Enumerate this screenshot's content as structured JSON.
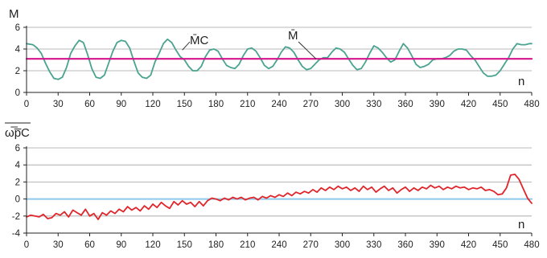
{
  "chart_data": [
    {
      "type": "line",
      "id": "top",
      "title": "",
      "ylabel": "M",
      "xlabel": "n",
      "xlim": [
        0,
        480
      ],
      "ylim": [
        0,
        6
      ],
      "xticks": [
        0,
        30,
        60,
        90,
        120,
        150,
        180,
        210,
        240,
        270,
        300,
        330,
        360,
        390,
        420,
        450,
        480
      ],
      "yticks": [
        0,
        2,
        4,
        6
      ],
      "grid": "horizontal",
      "colors": {
        "grid": "#a0a0a0",
        "axis": "#222222",
        "series_mc": "#4aa38f",
        "series_m": "#d4148c"
      },
      "series": [
        {
          "name": "M̄C",
          "x": [
            0,
            6,
            10,
            14,
            18,
            22,
            26,
            30,
            34,
            38,
            42,
            46,
            50,
            54,
            58,
            62,
            66,
            70,
            74,
            78,
            82,
            86,
            90,
            94,
            98,
            102,
            106,
            110,
            114,
            118,
            122,
            126,
            130,
            134,
            138,
            142,
            146,
            150,
            154,
            158,
            162,
            166,
            170,
            174,
            178,
            182,
            186,
            190,
            194,
            198,
            202,
            206,
            210,
            214,
            218,
            222,
            226,
            230,
            234,
            238,
            242,
            246,
            250,
            254,
            258,
            262,
            266,
            270,
            274,
            278,
            282,
            286,
            290,
            294,
            298,
            302,
            306,
            310,
            314,
            318,
            322,
            326,
            330,
            334,
            338,
            342,
            346,
            350,
            354,
            358,
            362,
            366,
            370,
            374,
            378,
            382,
            386,
            390,
            394,
            398,
            402,
            406,
            410,
            414,
            418,
            422,
            426,
            430,
            434,
            438,
            442,
            446,
            450,
            454,
            458,
            462,
            466,
            470,
            474,
            478,
            480
          ],
          "values": [
            4.5,
            4.4,
            4.1,
            3.6,
            2.7,
            1.9,
            1.3,
            1.2,
            1.4,
            2.3,
            3.6,
            4.3,
            4.8,
            4.6,
            3.5,
            2.2,
            1.4,
            1.3,
            1.6,
            2.7,
            3.8,
            4.6,
            4.8,
            4.7,
            4.1,
            2.9,
            1.8,
            1.4,
            1.3,
            1.6,
            2.8,
            3.6,
            4.5,
            4.9,
            4.6,
            3.9,
            3.3,
            3.0,
            2.4,
            2.0,
            2.0,
            2.4,
            3.3,
            3.9,
            4.0,
            3.8,
            3.1,
            2.5,
            2.3,
            2.2,
            2.6,
            3.4,
            4.0,
            4.1,
            3.8,
            3.2,
            2.5,
            2.2,
            2.4,
            3.0,
            3.7,
            4.2,
            4.1,
            3.7,
            3.0,
            2.4,
            2.1,
            2.2,
            2.6,
            3.0,
            3.2,
            3.2,
            3.7,
            4.1,
            4.0,
            3.7,
            3.1,
            2.5,
            2.1,
            2.2,
            2.8,
            3.6,
            4.3,
            4.1,
            3.7,
            3.2,
            2.8,
            3.0,
            3.8,
            4.5,
            4.1,
            3.4,
            2.6,
            2.3,
            2.4,
            2.6,
            3.0,
            3.1,
            3.1,
            3.2,
            3.4,
            3.8,
            4.0,
            4.0,
            3.9,
            3.4,
            3.0,
            2.4,
            1.8,
            1.5,
            1.5,
            1.6,
            2.0,
            2.6,
            3.2,
            4.0,
            4.5,
            4.4,
            4.4,
            4.5,
            4.5
          ],
          "color": "#4aa38f"
        },
        {
          "name": "M̄",
          "x": [
            0,
            480
          ],
          "values": [
            3.1,
            3.1
          ],
          "color": "#d4148c"
        }
      ],
      "annotations": [
        {
          "label": "M̄C",
          "target_x": 148,
          "target_y": 3.9
        },
        {
          "label": "M̄",
          "target_x": 275,
          "target_y": 3.1
        }
      ]
    },
    {
      "type": "line",
      "id": "bottom",
      "title": "",
      "ylabel": "ω̅p̅C",
      "xlabel": "n",
      "xlim": [
        0,
        480
      ],
      "ylim": [
        -4,
        6
      ],
      "xticks": [
        0,
        30,
        60,
        90,
        120,
        150,
        180,
        210,
        240,
        270,
        300,
        330,
        360,
        390,
        420,
        450,
        480
      ],
      "yticks": [
        -4,
        -2,
        0,
        2,
        4,
        6
      ],
      "grid": "horizontal",
      "colors": {
        "grid": "#a0a0a0",
        "axis": "#222222",
        "series_wp": "#e0262b",
        "zero_line": "#8ec8ea"
      },
      "series": [
        {
          "name": "ω̅p̅C",
          "x": [
            0,
            4,
            8,
            12,
            16,
            20,
            24,
            28,
            32,
            36,
            40,
            44,
            48,
            52,
            56,
            60,
            64,
            68,
            72,
            76,
            80,
            84,
            88,
            92,
            96,
            100,
            104,
            108,
            112,
            116,
            120,
            124,
            128,
            132,
            136,
            140,
            144,
            148,
            152,
            156,
            160,
            164,
            168,
            172,
            176,
            180,
            184,
            188,
            192,
            196,
            200,
            204,
            208,
            212,
            216,
            220,
            224,
            228,
            232,
            236,
            240,
            244,
            248,
            252,
            256,
            260,
            264,
            268,
            272,
            276,
            280,
            284,
            288,
            292,
            296,
            300,
            304,
            308,
            312,
            316,
            320,
            324,
            328,
            332,
            336,
            340,
            344,
            348,
            352,
            356,
            360,
            364,
            368,
            372,
            376,
            380,
            384,
            388,
            392,
            396,
            400,
            404,
            408,
            412,
            416,
            420,
            424,
            428,
            432,
            436,
            440,
            444,
            448,
            452,
            456,
            460,
            464,
            468,
            472,
            476,
            480
          ],
          "values": [
            -2.1,
            -1.9,
            -2.0,
            -2.1,
            -1.8,
            -2.3,
            -2.2,
            -1.7,
            -1.9,
            -1.5,
            -2.1,
            -1.3,
            -1.6,
            -1.9,
            -1.2,
            -2.0,
            -1.7,
            -2.4,
            -1.6,
            -1.9,
            -1.4,
            -1.7,
            -1.2,
            -1.5,
            -0.9,
            -1.3,
            -1.0,
            -1.4,
            -0.8,
            -1.2,
            -0.6,
            -1.0,
            -0.4,
            -0.8,
            -1.1,
            -0.3,
            -0.7,
            -0.2,
            -0.6,
            -0.4,
            -0.9,
            -0.3,
            -0.8,
            -0.2,
            0.1,
            0.0,
            -0.2,
            0.1,
            -0.1,
            0.2,
            0.0,
            0.2,
            -0.1,
            0.1,
            0.2,
            -0.1,
            0.3,
            0.1,
            0.4,
            0.2,
            0.5,
            0.3,
            0.7,
            0.4,
            0.8,
            0.6,
            0.9,
            0.7,
            1.1,
            0.8,
            1.3,
            1.0,
            1.4,
            1.1,
            1.5,
            1.2,
            1.4,
            1.0,
            1.3,
            0.9,
            1.5,
            1.1,
            1.4,
            0.8,
            1.2,
            1.5,
            1.0,
            1.3,
            0.7,
            1.1,
            1.4,
            0.9,
            1.3,
            1.0,
            1.4,
            1.2,
            1.6,
            1.3,
            1.5,
            1.1,
            1.4,
            1.2,
            1.5,
            1.3,
            1.4,
            1.1,
            1.3,
            1.2,
            1.4,
            1.0,
            1.1,
            0.9,
            0.5,
            0.6,
            1.3,
            2.8,
            2.9,
            2.3,
            1.2,
            0.1,
            -0.5
          ],
          "color": "#e0262b"
        },
        {
          "name": "",
          "x": [
            0,
            480
          ],
          "values": [
            0,
            0
          ],
          "color": "#8ec8ea"
        }
      ]
    }
  ]
}
